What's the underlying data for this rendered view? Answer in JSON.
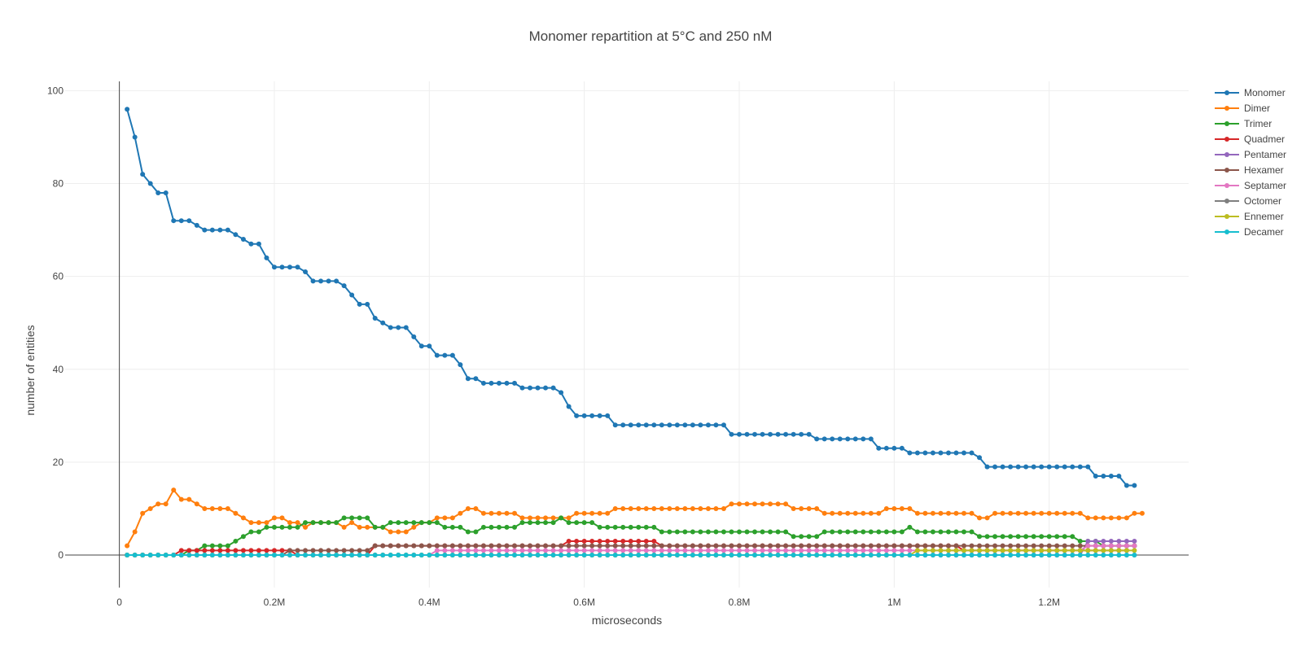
{
  "chart_data": {
    "type": "line",
    "title": "Monomer repartition at 5°C and 250 nM",
    "xlabel": "microseconds",
    "ylabel": "number of entities",
    "xlim": [
      -0.07,
      1.38
    ],
    "ylim": [
      -7,
      102
    ],
    "x_ticks": [
      0,
      0.2,
      0.4,
      0.6,
      0.8,
      1.0,
      1.2
    ],
    "x_tick_labels": [
      "0",
      "0.2M",
      "0.4M",
      "0.6M",
      "0.8M",
      "1M",
      "1.2M"
    ],
    "x_unit_note": "x values in millions of microseconds",
    "y_ticks": [
      0,
      20,
      40,
      60,
      80,
      100
    ],
    "y_tick_labels": [
      "0",
      "20",
      "40",
      "60",
      "80",
      "100"
    ],
    "grid": true,
    "legend_position": "top-right",
    "markers": true,
    "x_start": 0.01,
    "x_step": 0.01,
    "series": [
      {
        "name": "Monomer",
        "color": "#1f77b4",
        "values": [
          96,
          90,
          82,
          80,
          78,
          78,
          72,
          72,
          72,
          71,
          70,
          70,
          70,
          70,
          69,
          68,
          67,
          67,
          64,
          62,
          62,
          62,
          62,
          61,
          59,
          59,
          59,
          59,
          58,
          56,
          54,
          54,
          51,
          50,
          49,
          49,
          49,
          47,
          45,
          45,
          43,
          43,
          43,
          41,
          38,
          38,
          37,
          37,
          37,
          37,
          37,
          36,
          36,
          36,
          36,
          36,
          35,
          32,
          30,
          30,
          30,
          30,
          30,
          28,
          28,
          28,
          28,
          28,
          28,
          28,
          28,
          28,
          28,
          28,
          28,
          28,
          28,
          28,
          26,
          26,
          26,
          26,
          26,
          26,
          26,
          26,
          26,
          26,
          26,
          25,
          25,
          25,
          25,
          25,
          25,
          25,
          25,
          23,
          23,
          23,
          23,
          22,
          22,
          22,
          22,
          22,
          22,
          22,
          22,
          22,
          21,
          19,
          19,
          19,
          19,
          19,
          19,
          19,
          19,
          19,
          19,
          19,
          19,
          19,
          19,
          17,
          17,
          17,
          17,
          15,
          15
        ]
      },
      {
        "name": "Dimer",
        "color": "#ff7f0e",
        "values": [
          2,
          5,
          9,
          10,
          11,
          11,
          14,
          12,
          12,
          11,
          10,
          10,
          10,
          10,
          9,
          8,
          7,
          7,
          7,
          8,
          8,
          7,
          7,
          6,
          7,
          7,
          7,
          7,
          6,
          7,
          6,
          6,
          6,
          6,
          5,
          5,
          5,
          6,
          7,
          7,
          8,
          8,
          8,
          9,
          10,
          10,
          9,
          9,
          9,
          9,
          9,
          8,
          8,
          8,
          8,
          8,
          8,
          8,
          9,
          9,
          9,
          9,
          9,
          10,
          10,
          10,
          10,
          10,
          10,
          10,
          10,
          10,
          10,
          10,
          10,
          10,
          10,
          10,
          11,
          11,
          11,
          11,
          11,
          11,
          11,
          11,
          10,
          10,
          10,
          10,
          9,
          9,
          9,
          9,
          9,
          9,
          9,
          9,
          10,
          10,
          10,
          10,
          9,
          9,
          9,
          9,
          9,
          9,
          9,
          9,
          8,
          8,
          9,
          9,
          9,
          9,
          9,
          9,
          9,
          9,
          9,
          9,
          9,
          9,
          8,
          8,
          8,
          8,
          8,
          8,
          9,
          9
        ]
      },
      {
        "name": "Trimer",
        "color": "#2ca02c",
        "values": [
          0,
          0,
          0,
          0,
          0,
          0,
          0,
          0,
          1,
          1,
          2,
          2,
          2,
          2,
          3,
          4,
          5,
          5,
          6,
          6,
          6,
          6,
          6,
          7,
          7,
          7,
          7,
          7,
          8,
          8,
          8,
          8,
          6,
          6,
          7,
          7,
          7,
          7,
          7,
          7,
          7,
          6,
          6,
          6,
          5,
          5,
          6,
          6,
          6,
          6,
          6,
          7,
          7,
          7,
          7,
          7,
          8,
          7,
          7,
          7,
          7,
          6,
          6,
          6,
          6,
          6,
          6,
          6,
          6,
          5,
          5,
          5,
          5,
          5,
          5,
          5,
          5,
          5,
          5,
          5,
          5,
          5,
          5,
          5,
          5,
          5,
          4,
          4,
          4,
          4,
          5,
          5,
          5,
          5,
          5,
          5,
          5,
          5,
          5,
          5,
          5,
          6,
          5,
          5,
          5,
          5,
          5,
          5,
          5,
          5,
          4,
          4,
          4,
          4,
          4,
          4,
          4,
          4,
          4,
          4,
          4,
          4,
          4,
          3,
          3,
          3,
          2,
          2,
          2,
          2,
          2
        ]
      },
      {
        "name": "Quadmer",
        "color": "#d62728",
        "values": [
          0,
          0,
          0,
          0,
          0,
          0,
          0,
          1,
          1,
          1,
          1,
          1,
          1,
          1,
          1,
          1,
          1,
          1,
          1,
          1,
          1,
          1,
          0,
          0,
          0,
          0,
          0,
          0,
          0,
          0,
          0,
          0,
          2,
          2,
          2,
          2,
          2,
          2,
          2,
          2,
          2,
          2,
          2,
          2,
          2,
          2,
          2,
          2,
          2,
          2,
          2,
          2,
          2,
          2,
          2,
          2,
          2,
          3,
          3,
          3,
          3,
          3,
          3,
          3,
          3,
          3,
          3,
          3,
          3,
          2,
          2,
          2,
          2,
          2,
          2,
          2,
          2,
          2,
          2,
          2,
          2,
          2,
          2,
          2,
          2,
          2,
          2,
          2,
          2,
          2,
          2,
          2,
          2,
          2,
          2,
          2,
          2,
          2,
          2,
          2,
          2,
          2,
          2,
          2,
          2,
          2,
          2,
          2,
          1,
          1,
          1,
          1,
          1,
          1,
          1,
          1,
          1,
          1,
          1,
          1,
          1,
          1,
          1,
          1,
          1,
          1,
          1,
          1,
          1,
          1
        ]
      },
      {
        "name": "Pentamer",
        "color": "#9467bd",
        "values": [
          0,
          0,
          0,
          0,
          0,
          0,
          0,
          0,
          0,
          0,
          0,
          0,
          0,
          0,
          0,
          0,
          0,
          0,
          0,
          0,
          0,
          0,
          0,
          0,
          0,
          0,
          0,
          0,
          0,
          0,
          0,
          0,
          0,
          0,
          0,
          0,
          0,
          0,
          0,
          0,
          0,
          0,
          0,
          0,
          0,
          0,
          0,
          0,
          0,
          0,
          0,
          0,
          0,
          0,
          0,
          0,
          0,
          0,
          0,
          0,
          0,
          0,
          0,
          0,
          0,
          0,
          0,
          0,
          0,
          0,
          0,
          0,
          0,
          0,
          0,
          0,
          0,
          0,
          0,
          0,
          0,
          0,
          0,
          0,
          0,
          0,
          0,
          0,
          0,
          0,
          0,
          0,
          0,
          0,
          0,
          0,
          0,
          0,
          0,
          0,
          0,
          0,
          0,
          0,
          0,
          0,
          0,
          0,
          0,
          0,
          0,
          0,
          0,
          0,
          0,
          0,
          0,
          0,
          0,
          0,
          0,
          0,
          0,
          0,
          3,
          3,
          3,
          3,
          3,
          3,
          3
        ]
      },
      {
        "name": "Hexamer",
        "color": "#8c564b",
        "values": [
          0,
          0,
          0,
          0,
          0,
          0,
          0,
          0,
          0,
          0,
          0,
          0,
          0,
          0,
          0,
          0,
          0,
          0,
          0,
          0,
          0,
          1,
          1,
          1,
          1,
          1,
          1,
          1,
          1,
          1,
          1,
          1,
          2,
          2,
          2,
          2,
          2,
          2,
          2,
          2,
          2,
          2,
          2,
          2,
          2,
          2,
          2,
          2,
          2,
          2,
          2,
          2,
          2,
          2,
          2,
          2,
          2,
          2,
          2,
          2,
          2,
          2,
          2,
          2,
          2,
          2,
          2,
          2,
          2,
          2,
          2,
          2,
          2,
          2,
          2,
          2,
          2,
          2,
          2,
          2,
          2,
          2,
          2,
          2,
          2,
          2,
          2,
          2,
          2,
          2,
          2,
          2,
          2,
          2,
          2,
          2,
          2,
          2,
          2,
          2,
          2,
          2,
          2,
          2,
          2,
          2,
          2,
          2,
          2,
          2,
          2,
          2,
          2,
          2,
          2,
          2,
          2,
          2,
          2,
          2,
          2,
          2,
          2,
          2,
          2,
          2,
          2,
          2,
          2,
          2,
          2
        ]
      },
      {
        "name": "Septamer",
        "color": "#e377c2",
        "values": [
          0,
          0,
          0,
          0,
          0,
          0,
          0,
          0,
          0,
          0,
          0,
          0,
          0,
          0,
          0,
          0,
          0,
          0,
          0,
          0,
          0,
          0,
          0,
          0,
          0,
          0,
          0,
          0,
          0,
          0,
          0,
          0,
          0,
          0,
          0,
          0,
          0,
          0,
          0,
          0,
          1,
          1,
          1,
          1,
          1,
          1,
          1,
          1,
          1,
          1,
          1,
          1,
          1,
          1,
          1,
          1,
          1,
          1,
          1,
          1,
          1,
          1,
          1,
          1,
          1,
          1,
          1,
          1,
          1,
          1,
          1,
          1,
          1,
          1,
          1,
          1,
          1,
          1,
          1,
          1,
          1,
          1,
          1,
          1,
          1,
          1,
          1,
          1,
          1,
          1,
          1,
          1,
          1,
          1,
          1,
          1,
          1,
          1,
          1,
          1,
          1,
          1,
          1,
          1,
          1,
          1,
          1,
          1,
          1,
          1,
          1,
          1,
          1,
          1,
          1,
          1,
          1,
          1,
          1,
          1,
          1,
          1,
          1,
          1,
          2,
          2,
          2,
          2,
          2,
          2,
          2
        ]
      },
      {
        "name": "Octomer",
        "color": "#7f7f7f",
        "values": [
          0,
          0,
          0,
          0,
          0,
          0,
          0,
          0,
          0,
          0,
          0,
          0,
          0,
          0,
          0,
          0,
          0,
          0,
          0,
          0,
          0,
          0,
          0,
          0,
          0,
          0,
          0,
          0,
          0,
          0,
          0,
          0,
          0,
          0,
          0,
          0,
          0,
          0,
          0,
          0,
          0,
          0,
          0,
          0,
          0,
          0,
          0,
          0,
          0,
          0,
          0,
          0,
          0,
          0,
          0,
          0,
          0,
          0,
          0,
          0,
          0,
          0,
          0,
          0,
          0,
          0,
          0,
          0,
          0,
          0,
          0,
          0,
          0,
          0,
          0,
          0,
          0,
          0,
          0,
          0,
          0,
          0,
          0,
          0,
          0,
          0,
          0,
          0,
          0,
          0,
          0,
          0,
          0,
          0,
          0,
          0,
          0,
          0,
          0,
          0,
          0,
          0,
          0,
          0,
          0,
          0,
          0,
          0,
          0,
          0,
          0,
          0,
          0,
          0,
          0,
          0,
          0,
          0,
          0,
          0,
          0,
          0,
          0,
          0,
          0,
          0,
          0,
          0,
          0,
          0,
          0
        ]
      },
      {
        "name": " Ennemer",
        "color": "#bcbd22",
        "values": [
          0,
          0,
          0,
          0,
          0,
          0,
          0,
          0,
          0,
          0,
          0,
          0,
          0,
          0,
          0,
          0,
          0,
          0,
          0,
          0,
          0,
          0,
          0,
          0,
          0,
          0,
          0,
          0,
          0,
          0,
          0,
          0,
          0,
          0,
          0,
          0,
          0,
          0,
          0,
          0,
          0,
          0,
          0,
          0,
          0,
          0,
          0,
          0,
          0,
          0,
          0,
          0,
          0,
          0,
          0,
          0,
          0,
          0,
          0,
          0,
          0,
          0,
          0,
          0,
          0,
          0,
          0,
          0,
          0,
          0,
          0,
          0,
          0,
          0,
          0,
          0,
          0,
          0,
          0,
          0,
          0,
          0,
          0,
          0,
          0,
          0,
          0,
          0,
          0,
          0,
          0,
          0,
          0,
          0,
          0,
          0,
          0,
          0,
          0,
          0,
          0,
          0,
          1,
          1,
          1,
          1,
          1,
          1,
          1,
          1,
          1,
          1,
          1,
          1,
          1,
          1,
          1,
          1,
          1,
          1,
          1,
          1,
          1,
          1,
          1,
          1,
          1,
          1,
          1,
          1,
          1
        ]
      },
      {
        "name": "Decamer",
        "color": "#17becf",
        "values": [
          0,
          0,
          0,
          0,
          0,
          0,
          0,
          0,
          0,
          0,
          0,
          0,
          0,
          0,
          0,
          0,
          0,
          0,
          0,
          0,
          0,
          0,
          0,
          0,
          0,
          0,
          0,
          0,
          0,
          0,
          0,
          0,
          0,
          0,
          0,
          0,
          0,
          0,
          0,
          0,
          0,
          0,
          0,
          0,
          0,
          0,
          0,
          0,
          0,
          0,
          0,
          0,
          0,
          0,
          0,
          0,
          0,
          0,
          0,
          0,
          0,
          0,
          0,
          0,
          0,
          0,
          0,
          0,
          0,
          0,
          0,
          0,
          0,
          0,
          0,
          0,
          0,
          0,
          0,
          0,
          0,
          0,
          0,
          0,
          0,
          0,
          0,
          0,
          0,
          0,
          0,
          0,
          0,
          0,
          0,
          0,
          0,
          0,
          0,
          0,
          0,
          0,
          0,
          0,
          0,
          0,
          0,
          0,
          0,
          0,
          0,
          0,
          0,
          0,
          0,
          0,
          0,
          0,
          0,
          0,
          0,
          0,
          0,
          0,
          0,
          0,
          0,
          0,
          0,
          0,
          0
        ]
      }
    ]
  }
}
